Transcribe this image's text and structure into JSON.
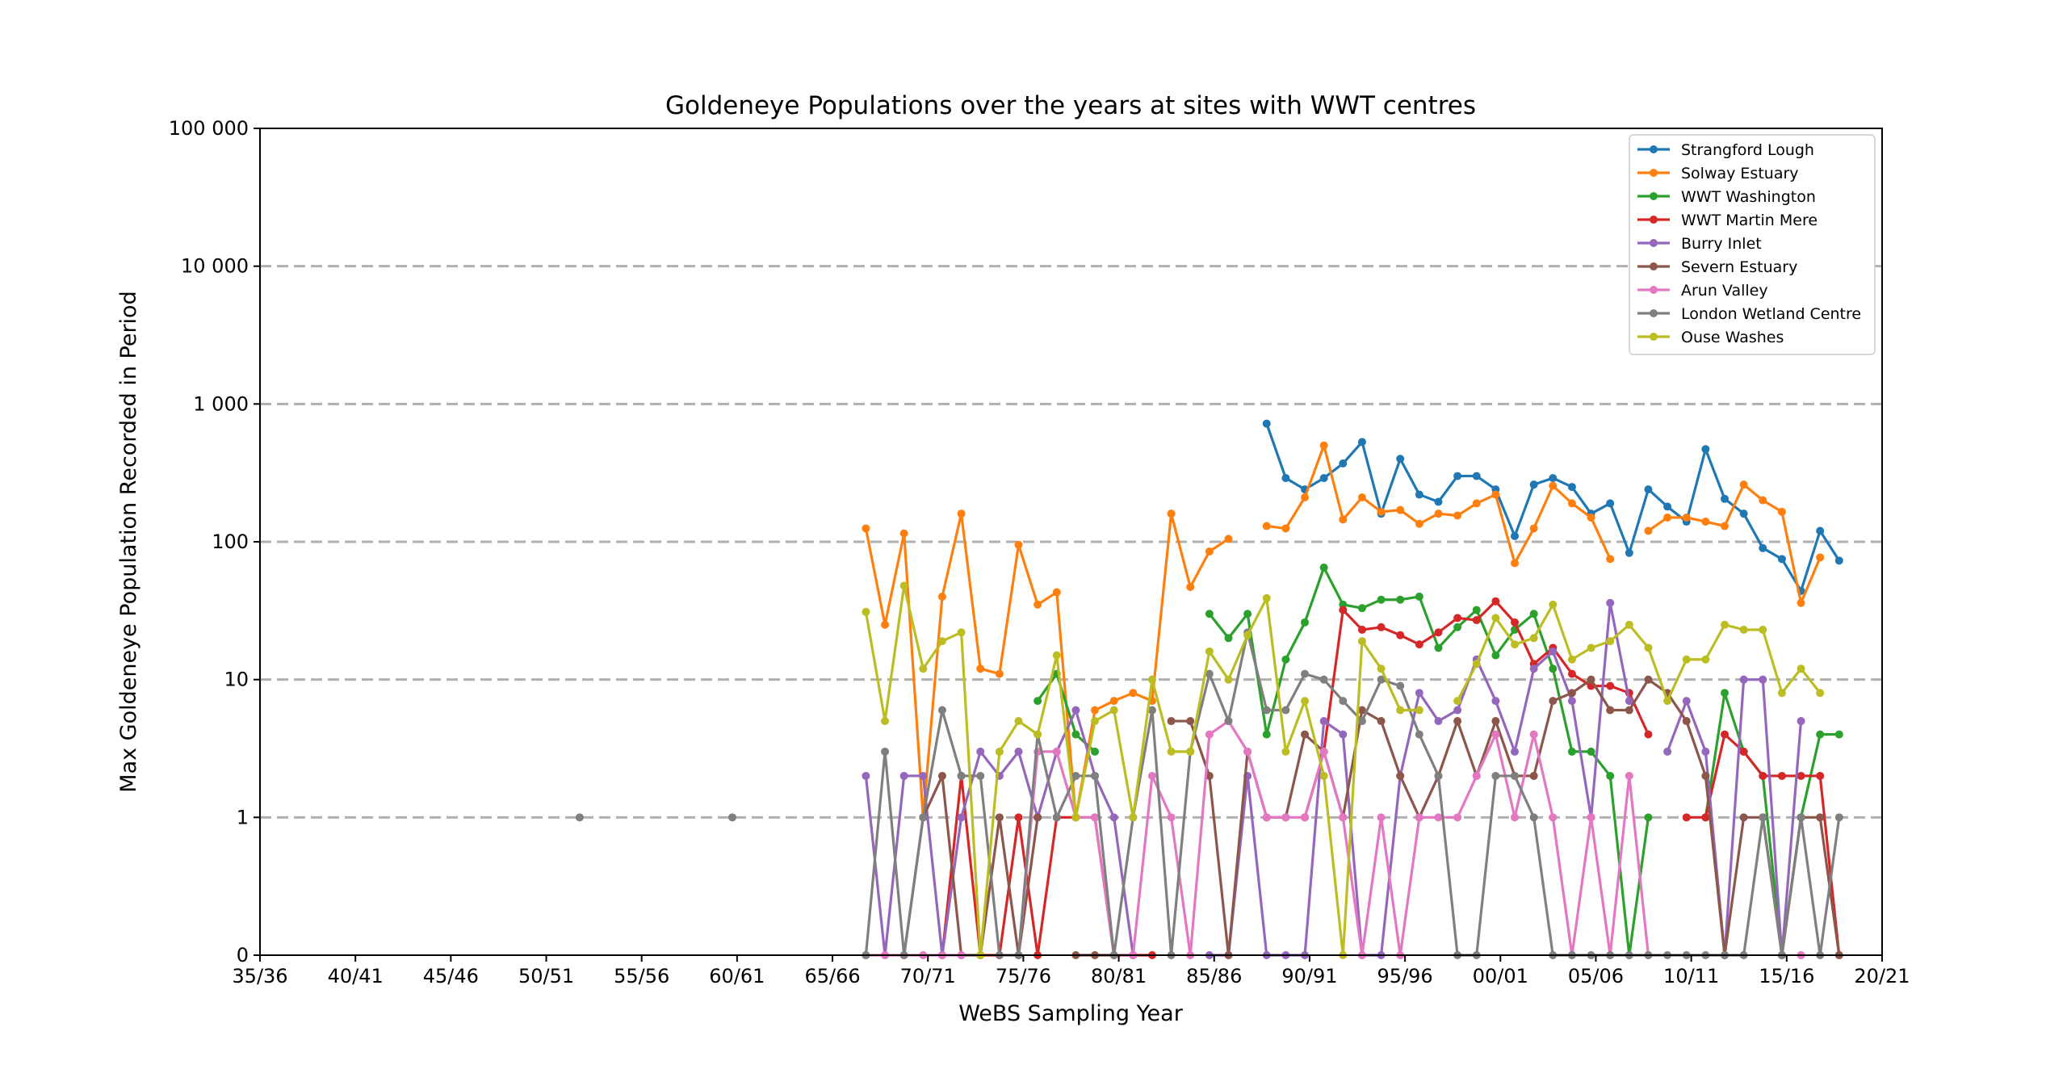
{
  "chart_data": {
    "type": "line",
    "title": "Goldeneye Populations over the years at sites with WWT centres",
    "xlabel": "WeBS Sampling Year",
    "ylabel": "Max Goldeneye Population Recorded in Period",
    "y_scale": "symlog",
    "ylim": [
      0,
      100000
    ],
    "xlim": [
      1935,
      2020
    ],
    "x_tick_labels": [
      "35/36",
      "40/41",
      "45/46",
      "50/51",
      "55/56",
      "60/61",
      "65/66",
      "70/71",
      "75/76",
      "80/81",
      "85/86",
      "90/91",
      "95/96",
      "00/01",
      "05/06",
      "10/11",
      "15/16",
      "20/21"
    ],
    "x_tick_values": [
      1935,
      1940,
      1945,
      1950,
      1955,
      1960,
      1965,
      1970,
      1975,
      1980,
      1985,
      1990,
      1995,
      2000,
      2005,
      2010,
      2015,
      2020
    ],
    "y_ticks": [
      {
        "value": 0,
        "label": "0"
      },
      {
        "value": 1,
        "label": "1"
      },
      {
        "value": 10,
        "label": "10"
      },
      {
        "value": 100,
        "label": "100"
      },
      {
        "value": 1000,
        "label": "1 000"
      },
      {
        "value": 10000,
        "label": "10 000"
      },
      {
        "value": 100000,
        "label": "100 000"
      }
    ],
    "grid": "horizontal dashed at 1, 10, 100, 1 000, 10 000",
    "legend_position": "top-right",
    "series": [
      {
        "name": "Strangford Lough",
        "color": "#1f77b4",
        "start": 1987,
        "values": [
          720,
          290,
          240,
          290,
          370,
          530,
          160,
          400,
          220,
          195,
          300,
          300,
          240,
          110,
          260,
          290,
          250,
          160,
          190,
          83,
          240,
          180,
          140,
          470,
          205,
          160,
          90,
          75,
          44,
          120,
          73
        ]
      },
      {
        "name": "Solway Estuary",
        "color": "#ff7f0e",
        "start": 1966,
        "values": [
          125,
          25,
          115,
          1,
          40,
          160,
          12,
          11,
          95,
          35,
          43,
          1,
          6,
          7,
          8,
          7,
          160,
          47,
          85,
          105,
          null,
          130,
          125,
          210,
          500,
          145,
          210,
          165,
          170,
          135,
          160,
          155,
          190,
          220,
          70,
          125,
          255,
          190,
          150,
          75,
          null,
          120,
          150,
          150,
          140,
          130,
          260,
          200,
          165,
          36,
          77
        ]
      },
      {
        "name": "WWT Washington",
        "color": "#2ca02c",
        "start": 1975,
        "values": [
          7,
          11,
          4,
          3,
          null,
          null,
          null,
          null,
          null,
          30,
          20,
          30,
          4,
          14,
          26,
          65,
          35,
          33,
          38,
          38,
          40,
          17,
          24,
          32,
          15,
          23,
          30,
          12,
          3,
          3,
          2,
          0,
          1,
          null,
          null,
          1,
          8,
          3,
          2,
          0,
          1,
          4,
          4
        ]
      },
      {
        "name": "WWT Martin Mere",
        "color": "#d62728",
        "start": 1970,
        "values": [
          0,
          2,
          0,
          0,
          1,
          0,
          1,
          1,
          1,
          0,
          0,
          0,
          null,
          null,
          null,
          null,
          null,
          null,
          null,
          1,
          3,
          32,
          23,
          24,
          21,
          18,
          22,
          28,
          27,
          37,
          26,
          13,
          17,
          11,
          9,
          9,
          8,
          4,
          null,
          1,
          1,
          4,
          3,
          2,
          2,
          2,
          2,
          0
        ]
      },
      {
        "name": "Burry Inlet",
        "color": "#9467bd",
        "start": 1966,
        "values": [
          2,
          0,
          2,
          2,
          0,
          1,
          3,
          2,
          3,
          1,
          3,
          6,
          2,
          1,
          0,
          null,
          null,
          null,
          0,
          0,
          2,
          0,
          0,
          0,
          5,
          4,
          0,
          0,
          2,
          8,
          5,
          6,
          14,
          7,
          3,
          12,
          16,
          7,
          1,
          36,
          7,
          null,
          3,
          7,
          3,
          0,
          10,
          10,
          0,
          5
        ]
      },
      {
        "name": "Severn Estuary",
        "color": "#8c564b",
        "start": 1966,
        "values": [
          0,
          null,
          0,
          1,
          2,
          0,
          0,
          1,
          0,
          1,
          null,
          0,
          0,
          0,
          0,
          null,
          5,
          5,
          2,
          0,
          3,
          1,
          1,
          4,
          3,
          1,
          6,
          5,
          2,
          1,
          2,
          5,
          2,
          5,
          2,
          2,
          7,
          8,
          10,
          6,
          6,
          10,
          8,
          5,
          2,
          0,
          1,
          1,
          0,
          1,
          1,
          0
        ]
      },
      {
        "name": "Arun Valley",
        "color": "#e377c2",
        "start": 1966,
        "values": [
          0,
          0,
          0,
          0,
          0,
          0,
          null,
          null,
          0,
          3,
          3,
          1,
          1,
          0,
          0,
          2,
          1,
          0,
          4,
          5,
          3,
          1,
          1,
          1,
          3,
          1,
          0,
          1,
          0,
          1,
          1,
          1,
          2,
          4,
          1,
          4,
          1,
          0,
          1,
          0,
          2,
          0,
          null,
          null,
          null,
          null,
          null,
          null,
          null,
          0
        ]
      },
      {
        "name": "London Wetland Centre",
        "color": "#7f7f7f",
        "start": 1966,
        "values": [
          0,
          3,
          0,
          1,
          6,
          2,
          2,
          0,
          0,
          4,
          1,
          2,
          2,
          0,
          1,
          6,
          0,
          3,
          11,
          5,
          22,
          6,
          6,
          11,
          10,
          7,
          5,
          10,
          9,
          4,
          2,
          0,
          0,
          2,
          2,
          1,
          0,
          0,
          0,
          0,
          0,
          0,
          0,
          0,
          0,
          0,
          0,
          1,
          0,
          1,
          0,
          1
        ]
      },
      {
        "name": "Ouse Washes",
        "color": "#bcbd22",
        "start": 1966,
        "values": [
          31,
          5,
          48,
          12,
          19,
          22,
          0,
          3,
          5,
          4,
          15,
          1,
          5,
          6,
          1,
          10,
          3,
          3,
          16,
          10,
          21,
          39,
          3,
          7,
          2,
          0,
          19,
          12,
          6,
          6,
          null,
          7,
          13,
          28,
          18,
          20,
          35,
          14,
          17,
          19,
          25,
          17,
          7,
          14,
          14,
          25,
          23,
          23,
          8,
          12,
          8
        ]
      }
    ],
    "isolated_points": [
      {
        "series": "London Wetland Centre",
        "x": 1951,
        "y": 1
      },
      {
        "series": "London Wetland Centre",
        "x": 1959,
        "y": 1
      }
    ]
  }
}
